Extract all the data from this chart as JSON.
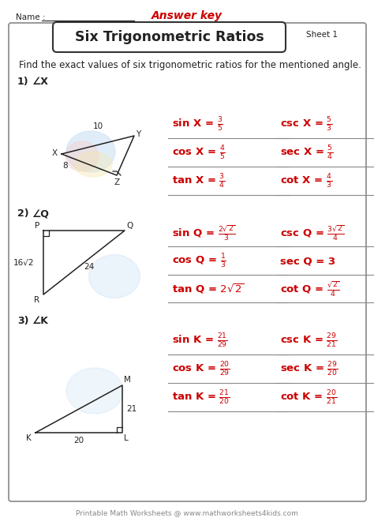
{
  "title": "Six Trigonometric Ratios",
  "answer_key": "Answer key",
  "sheet": "Sheet 1",
  "name_label": "Name : ",
  "instruction": "Find the exact values of six trigonometric ratios for the mentioned angle.",
  "footer": "Printable Math Worksheets @ www.mathworksheets4kids.com",
  "problems": [
    {
      "num": "1)",
      "angle": "∠X",
      "rows": [
        {
          "left": "sin X = $\\frac{3}{5}$",
          "right": "csc X = $\\frac{5}{3}$"
        },
        {
          "left": "cos X = $\\frac{4}{5}$",
          "right": "sec X = $\\frac{5}{4}$"
        },
        {
          "left": "tan X = $\\frac{3}{4}$",
          "right": "cot X = $\\frac{4}{3}$"
        }
      ]
    },
    {
      "num": "2)",
      "angle": "∠Q",
      "rows": [
        {
          "left": "sin Q = $\\frac{2\\sqrt{2}}{3}$",
          "right": "csc Q = $\\frac{3\\sqrt{2}}{4}$"
        },
        {
          "left": "cos Q = $\\frac{1}{3}$",
          "right": "sec Q = 3"
        },
        {
          "left": "tan Q = $2\\sqrt{2}$",
          "right": "cot Q = $\\frac{\\sqrt{2}}{4}$"
        }
      ]
    },
    {
      "num": "3)",
      "angle": "∠K",
      "rows": [
        {
          "left": "sin K = $\\frac{21}{29}$",
          "right": "csc K = $\\frac{29}{21}$"
        },
        {
          "left": "cos K = $\\frac{20}{29}$",
          "right": "sec K = $\\frac{29}{20}$"
        },
        {
          "left": "tan K = $\\frac{21}{20}$",
          "right": "cot K = $\\frac{20}{21}$"
        }
      ]
    }
  ],
  "colors": {
    "red": "#cc0000",
    "black": "#222222",
    "bg": "#ffffff",
    "border": "#888888",
    "line": "#888888",
    "footer": "#888888"
  },
  "layout": {
    "fig_w": 4.74,
    "fig_h": 6.7,
    "dpi": 100
  }
}
